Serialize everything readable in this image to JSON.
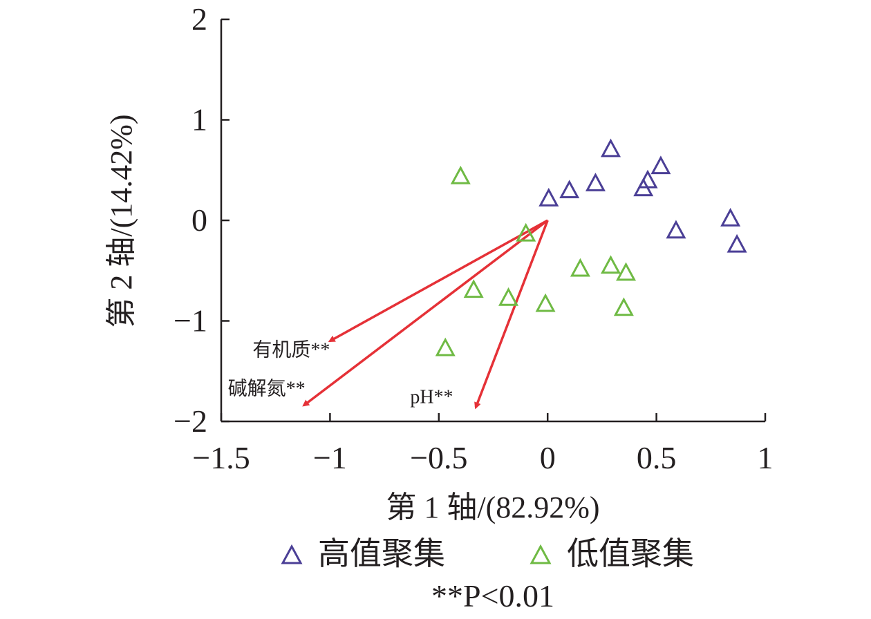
{
  "chart_data": {
    "type": "scatter",
    "xlabel": "第 1 轴/(82.92%)",
    "ylabel": "第 2 轴/(14.42%)",
    "xlim": [
      -1.5,
      1
    ],
    "ylim": [
      -2,
      2
    ],
    "xticks": [
      -1.5,
      -1,
      -0.5,
      0,
      0.5,
      1
    ],
    "xtick_labels": [
      "−1.5",
      "−1",
      "−0.5",
      "0",
      "0.5",
      "1"
    ],
    "yticks": [
      -2,
      -1,
      0,
      1,
      2
    ],
    "ytick_labels": [
      "−2",
      "−1",
      "0",
      "1",
      "2"
    ],
    "grid": false,
    "legend_position": "bottom",
    "series": [
      {
        "name": "高值聚集",
        "color": "#4b3f96",
        "marker": "triangle-open",
        "points": [
          [
            0.005,
            0.22
          ],
          [
            0.1,
            0.3
          ],
          [
            0.22,
            0.37
          ],
          [
            0.29,
            0.71
          ],
          [
            0.44,
            0.32
          ],
          [
            0.46,
            0.4
          ],
          [
            0.52,
            0.54
          ],
          [
            0.59,
            -0.1
          ],
          [
            0.84,
            0.02
          ],
          [
            0.87,
            -0.24
          ]
        ]
      },
      {
        "name": "低值聚集",
        "color": "#6fba44",
        "marker": "triangle-open",
        "points": [
          [
            -0.4,
            0.44
          ],
          [
            -0.1,
            -0.13
          ],
          [
            -0.34,
            -0.69
          ],
          [
            -0.18,
            -0.77
          ],
          [
            -0.01,
            -0.83
          ],
          [
            0.15,
            -0.48
          ],
          [
            0.29,
            -0.45
          ],
          [
            0.36,
            -0.52
          ],
          [
            0.35,
            -0.87
          ],
          [
            -0.47,
            -1.27
          ]
        ]
      }
    ],
    "vectors": [
      {
        "label": "有机质**",
        "x": -1.0,
        "y": -1.2,
        "color": "#e53137"
      },
      {
        "label": "碱解氮**",
        "x": -1.12,
        "y": -1.84,
        "color": "#e53137"
      },
      {
        "label": "pH**",
        "x": -0.33,
        "y": -1.86,
        "color": "#e53137"
      }
    ],
    "note": "**P<0.01"
  }
}
